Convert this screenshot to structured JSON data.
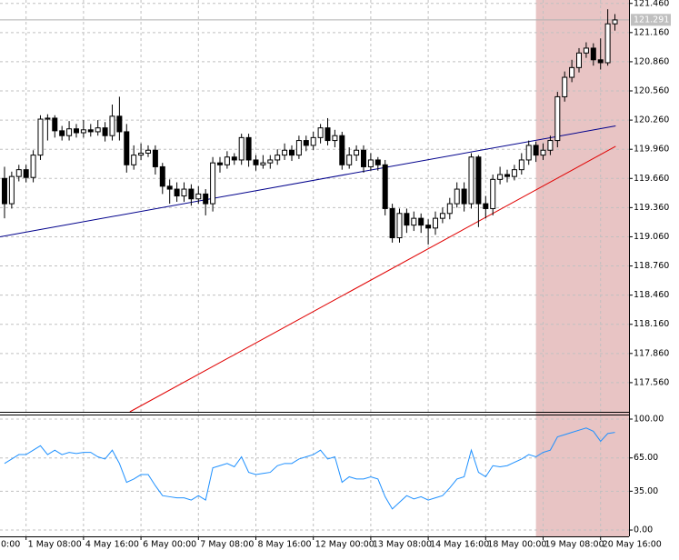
{
  "chart_data": {
    "type": "candlestick",
    "open": [
      119.66,
      119.4,
      119.68,
      119.75,
      119.67,
      119.9,
      120.27,
      120.28,
      120.15,
      120.1,
      120.17,
      120.13,
      120.16,
      120.14,
      120.18,
      120.1,
      120.3,
      120.14,
      119.8,
      119.9,
      119.92,
      119.95,
      119.78,
      119.58,
      119.55,
      119.48,
      119.55,
      119.45,
      119.5,
      119.4,
      119.82,
      119.8,
      119.88,
      119.85,
      120.08,
      119.85,
      119.8,
      119.82,
      119.85,
      119.9,
      119.95,
      119.9,
      120.05,
      120.0,
      120.08,
      120.18,
      120.05,
      120.1,
      119.8,
      119.9,
      119.95,
      119.78,
      119.85,
      119.8,
      119.35,
      119.05,
      119.3,
      119.18,
      119.25,
      119.18,
      119.15,
      119.25,
      119.3,
      119.4,
      119.55,
      119.4,
      119.88,
      119.4,
      119.35,
      119.65,
      119.7,
      119.68,
      119.75,
      119.85,
      120.0,
      119.9,
      119.95,
      120.05,
      120.5,
      120.7,
      120.8,
      120.95,
      121.0,
      120.88,
      120.85,
      121.25
    ],
    "high": [
      119.78,
      119.73,
      119.8,
      119.8,
      119.95,
      120.31,
      120.32,
      120.31,
      120.2,
      120.25,
      120.22,
      120.26,
      120.22,
      120.26,
      120.24,
      120.42,
      120.5,
      120.22,
      120.0,
      120.02,
      120.0,
      120.0,
      119.82,
      119.65,
      119.62,
      119.62,
      119.6,
      119.58,
      119.55,
      119.88,
      119.88,
      119.94,
      119.92,
      120.12,
      120.12,
      119.9,
      119.9,
      119.9,
      119.96,
      120.02,
      120.0,
      120.1,
      120.1,
      120.14,
      120.22,
      120.28,
      120.16,
      120.14,
      119.98,
      120.0,
      120.0,
      119.92,
      119.88,
      119.85,
      119.4,
      119.35,
      119.35,
      119.32,
      119.3,
      119.24,
      119.32,
      119.36,
      119.46,
      119.62,
      119.62,
      119.92,
      119.9,
      119.48,
      119.7,
      119.78,
      119.75,
      119.8,
      119.92,
      120.05,
      120.04,
      120.02,
      120.1,
      120.55,
      120.76,
      120.88,
      121.0,
      121.06,
      121.05,
      121.1,
      121.4,
      121.35
    ],
    "low": [
      119.25,
      119.35,
      119.63,
      119.62,
      119.62,
      119.85,
      120.05,
      120.08,
      120.05,
      120.05,
      120.08,
      120.08,
      120.09,
      120.1,
      120.04,
      120.05,
      120.05,
      119.72,
      119.75,
      119.85,
      119.88,
      119.7,
      119.5,
      119.4,
      119.42,
      119.42,
      119.38,
      119.4,
      119.28,
      119.32,
      119.72,
      119.76,
      119.8,
      119.8,
      119.78,
      119.74,
      119.76,
      119.76,
      119.8,
      119.85,
      119.84,
      119.86,
      119.94,
      119.95,
      120.02,
      120.0,
      119.98,
      119.75,
      119.76,
      119.84,
      119.72,
      119.74,
      119.74,
      119.28,
      119.0,
      119.0,
      119.1,
      119.12,
      119.1,
      118.98,
      119.08,
      119.2,
      119.24,
      119.36,
      119.32,
      119.35,
      119.16,
      119.25,
      119.28,
      119.6,
      119.62,
      119.64,
      119.7,
      119.8,
      119.83,
      119.85,
      119.9,
      119.98,
      120.45,
      120.65,
      120.75,
      120.9,
      120.82,
      120.78,
      120.82,
      121.18
    ],
    "close": [
      119.4,
      119.68,
      119.75,
      119.67,
      119.9,
      120.27,
      120.28,
      120.15,
      120.1,
      120.17,
      120.13,
      120.16,
      120.14,
      120.18,
      120.1,
      120.3,
      120.14,
      119.8,
      119.9,
      119.92,
      119.95,
      119.78,
      119.58,
      119.55,
      119.48,
      119.55,
      119.45,
      119.5,
      119.4,
      119.82,
      119.8,
      119.88,
      119.85,
      120.08,
      119.85,
      119.8,
      119.82,
      119.85,
      119.9,
      119.95,
      119.9,
      120.05,
      120.0,
      120.08,
      120.18,
      120.05,
      120.1,
      119.8,
      119.9,
      119.95,
      119.78,
      119.85,
      119.8,
      119.35,
      119.05,
      119.3,
      119.18,
      119.25,
      119.18,
      119.15,
      119.25,
      119.3,
      119.4,
      119.55,
      119.4,
      119.88,
      119.4,
      119.35,
      119.65,
      119.7,
      119.68,
      119.75,
      119.85,
      120.0,
      119.9,
      119.95,
      120.05,
      120.5,
      120.7,
      120.8,
      120.95,
      121.0,
      120.88,
      120.85,
      121.25,
      121.29
    ],
    "up_color": "#ffffff",
    "down_color": "#000000",
    "xlim": [
      -0.63,
      86.96
    ],
    "ylim": [
      117.26,
      121.495
    ],
    "yticks": [
      {
        "value": 121.46,
        "label": "121.460"
      },
      {
        "value": 121.16,
        "label": "121.160"
      },
      {
        "value": 120.86,
        "label": "120.860"
      },
      {
        "value": 120.56,
        "label": "120.560"
      },
      {
        "value": 120.26,
        "label": "120.260"
      },
      {
        "value": 119.96,
        "label": "119.960"
      },
      {
        "value": 119.66,
        "label": "119.660"
      },
      {
        "value": 119.36,
        "label": "119.360"
      },
      {
        "value": 119.06,
        "label": "119.060"
      },
      {
        "value": 118.76,
        "label": "118.760"
      },
      {
        "value": 118.46,
        "label": "118.460"
      },
      {
        "value": 118.16,
        "label": "118.160"
      },
      {
        "value": 117.86,
        "label": "117.860"
      },
      {
        "value": 117.56,
        "label": "117.560"
      }
    ],
    "xticks": [
      {
        "value": -5,
        "label": "0:00"
      },
      {
        "value": 3,
        "label": "1 May 08:00"
      },
      {
        "value": 11,
        "label": "4 May 16:00"
      },
      {
        "value": 19,
        "label": "6 May 00:00"
      },
      {
        "value": 27,
        "label": "7 May 08:00"
      },
      {
        "value": 35,
        "label": "8 May 16:00"
      },
      {
        "value": 43,
        "label": "12 May 00:00"
      },
      {
        "value": 51,
        "label": "13 May 08:00"
      },
      {
        "value": 59,
        "label": "14 May 16:00"
      },
      {
        "value": 67,
        "label": "18 May 00:00"
      },
      {
        "value": 75,
        "label": "19 May 08:00"
      },
      {
        "value": 83,
        "label": "20 May 16:00"
      }
    ],
    "grid": true,
    "current_price": 121.291,
    "highlight": {
      "x": [
        74,
        86.96
      ],
      "color": "#e8c4c4"
    },
    "trendlines": [
      {
        "color": "#00008b",
        "x": [
          -0.63,
          85.1
        ],
        "values": [
          119.06,
          120.2
        ]
      },
      {
        "color": "#e00000",
        "x": [
          17.45,
          85.1
        ],
        "values": [
          117.26,
          119.99
        ]
      }
    ],
    "indicator": {
      "type": "line",
      "color": "#1e90ff",
      "values": [
        60,
        64,
        68,
        68,
        72,
        76,
        68,
        72,
        68,
        70,
        69,
        70,
        70,
        66,
        64,
        72,
        60,
        43,
        46,
        50,
        50,
        40,
        31,
        30,
        29,
        29,
        27,
        31,
        27,
        56,
        58,
        60,
        57,
        66,
        52,
        50,
        51,
        52,
        58,
        60,
        60,
        64,
        66,
        68,
        72,
        64,
        66,
        43,
        48,
        46,
        46,
        48,
        46,
        30,
        19,
        25,
        31,
        28,
        30,
        27,
        29,
        31,
        38,
        46,
        48,
        72,
        52,
        48,
        58,
        57,
        58,
        61,
        64,
        68,
        66,
        70,
        72,
        84,
        86,
        88,
        90,
        92,
        89,
        80,
        87,
        88
      ],
      "ylim": [
        -5.7,
        104.1
      ],
      "yticks": [
        {
          "value": 100,
          "label": "100.00"
        },
        {
          "value": 65,
          "label": "65.00"
        },
        {
          "value": 35,
          "label": "35.00"
        },
        {
          "value": 0,
          "label": "0.00"
        }
      ]
    }
  }
}
